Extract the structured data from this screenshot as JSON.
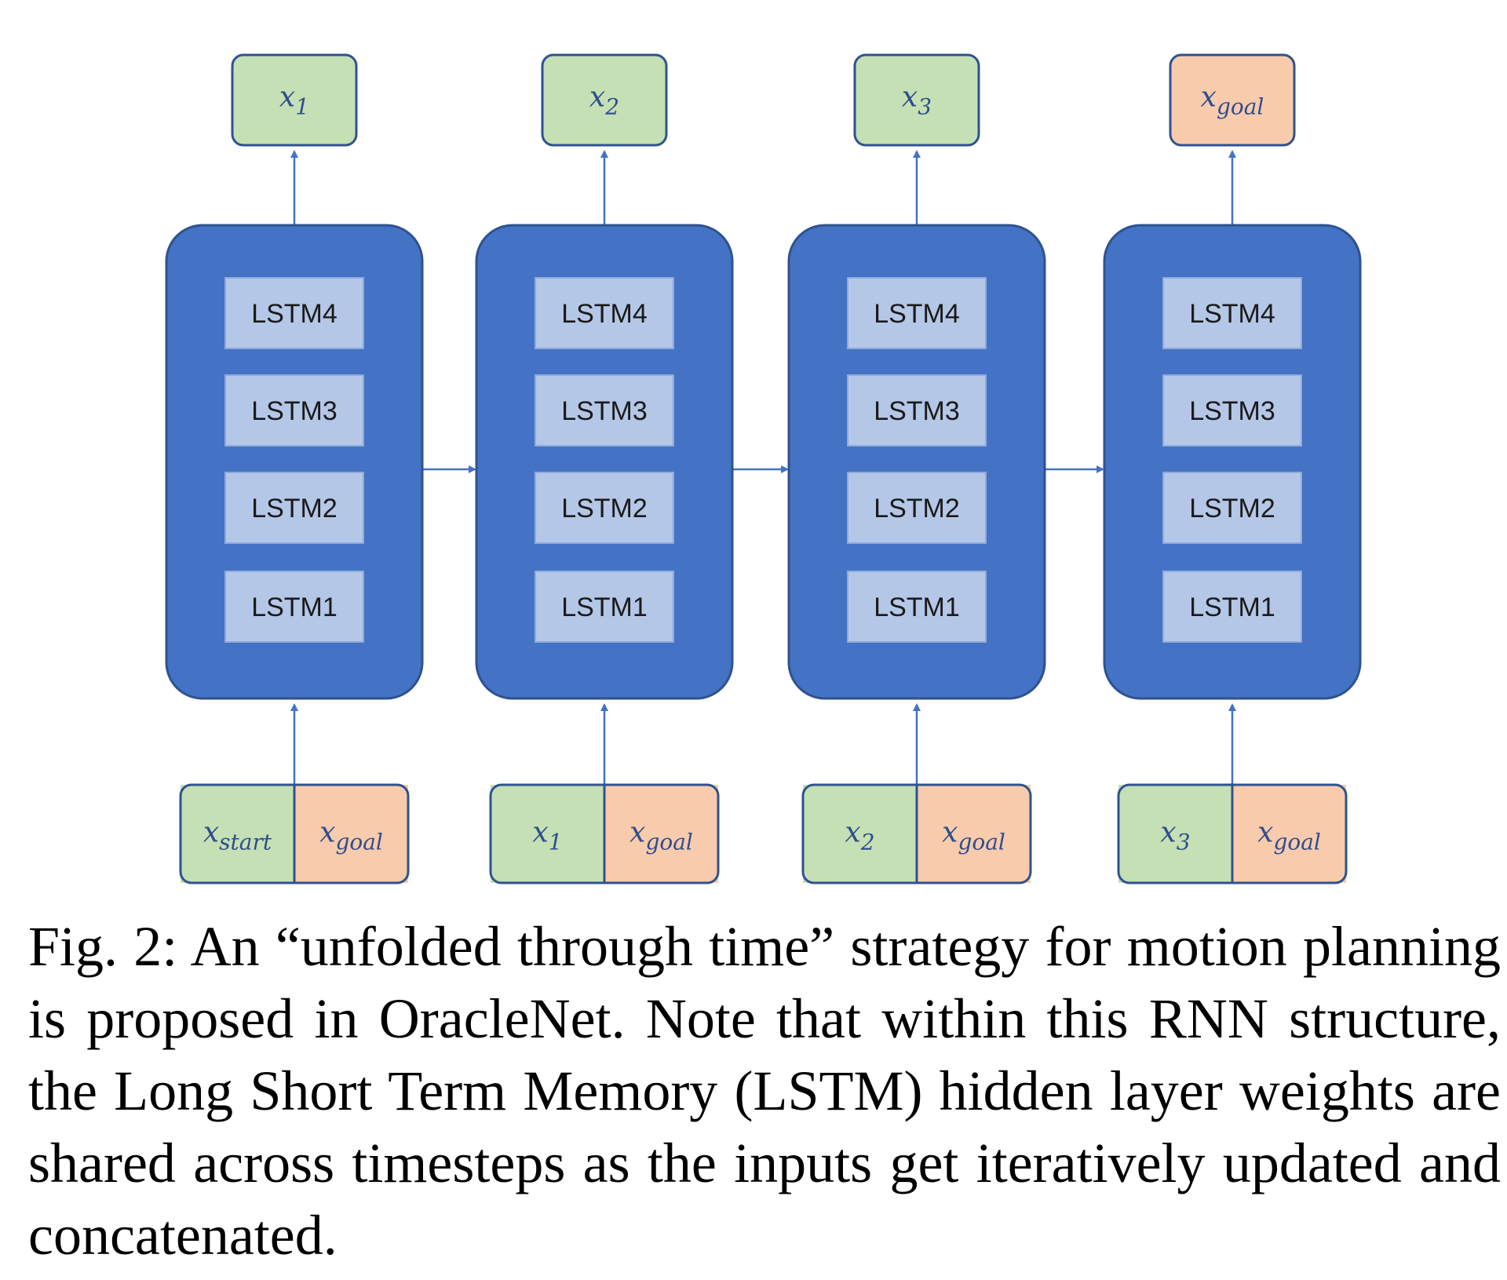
{
  "colors": {
    "cell_fill": "#4472c4",
    "cell_stroke": "#2f528f",
    "layer_fill": "#b4c7e7",
    "output_green": "#c5e0b4",
    "goal_orange": "#f8cbad",
    "arrow": "#4472c4",
    "var_text": "#2f4e8c"
  },
  "timesteps": [
    {
      "output": {
        "main": "x",
        "sub": "1"
      },
      "layers": [
        "LSTM4",
        "LSTM3",
        "LSTM2",
        "LSTM1"
      ],
      "input_left": {
        "main": "x",
        "sub": "start"
      },
      "input_right": {
        "main": "x",
        "sub": "goal"
      }
    },
    {
      "output": {
        "main": "x",
        "sub": "2"
      },
      "layers": [
        "LSTM4",
        "LSTM3",
        "LSTM2",
        "LSTM1"
      ],
      "input_left": {
        "main": "x",
        "sub": "1"
      },
      "input_right": {
        "main": "x",
        "sub": "goal"
      }
    },
    {
      "output": {
        "main": "x",
        "sub": "3"
      },
      "layers": [
        "LSTM4",
        "LSTM3",
        "LSTM2",
        "LSTM1"
      ],
      "input_left": {
        "main": "x",
        "sub": "2"
      },
      "input_right": {
        "main": "x",
        "sub": "goal"
      }
    },
    {
      "output": {
        "main": "x",
        "sub": "goal",
        "goal": true
      },
      "layers": [
        "LSTM4",
        "LSTM3",
        "LSTM2",
        "LSTM1"
      ],
      "input_left": {
        "main": "x",
        "sub": "3"
      },
      "input_right": {
        "main": "x",
        "sub": "goal"
      }
    }
  ],
  "caption": "Fig. 2: An “unfolded through time” strategy for motion planning is proposed in OracleNet. Note that within this RNN structure, the Long Short Term Memory (LSTM) hidden layer weights are shared across timesteps as the inputs get iteratively updated and concatenated."
}
